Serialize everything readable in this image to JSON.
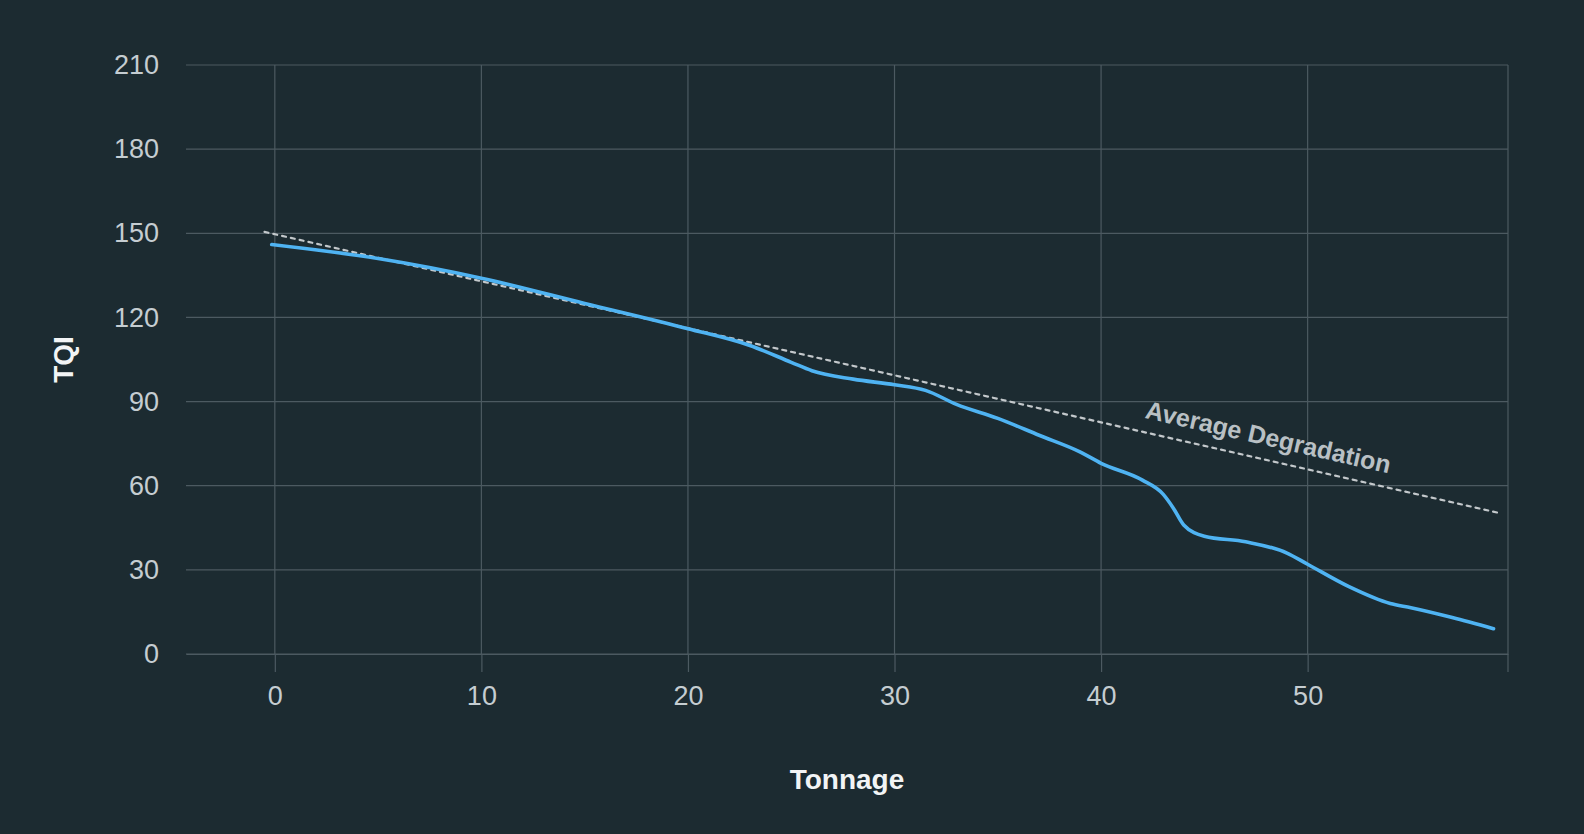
{
  "chart_data": {
    "type": "line",
    "x_label": "Tonnage",
    "y_label": "TQI",
    "xlim": [
      -4.3,
      59.7
    ],
    "xticks": [
      0,
      10,
      20,
      30,
      40,
      50
    ],
    "ylim": [
      0,
      210
    ],
    "yticks": [
      0,
      30,
      60,
      90,
      120,
      150,
      180,
      210
    ],
    "grid": true,
    "series": [
      {
        "name": "Average Degradation",
        "color": "#c3c8cb",
        "line_style": "dashed",
        "x": [
          -0.5,
          59.2
        ],
        "values": [
          150.5,
          50.4
        ]
      },
      {
        "color": "#4fb3f2",
        "line_style": "solid",
        "x": [
          -0.15,
          5,
          10,
          15,
          20,
          23,
          25,
          26,
          28,
          30,
          31.5,
          33,
          35,
          37,
          39,
          40,
          42,
          43,
          43.5,
          44,
          45,
          47,
          49,
          50,
          52,
          54,
          55,
          57,
          59
        ],
        "values": [
          146,
          141,
          134,
          125,
          116,
          110,
          104,
          101,
          98,
          96,
          94,
          89,
          84,
          78,
          72,
          68,
          62,
          57,
          52,
          46,
          42,
          40,
          36,
          32,
          24,
          18,
          16.5,
          13,
          9
        ]
      }
    ]
  }
}
